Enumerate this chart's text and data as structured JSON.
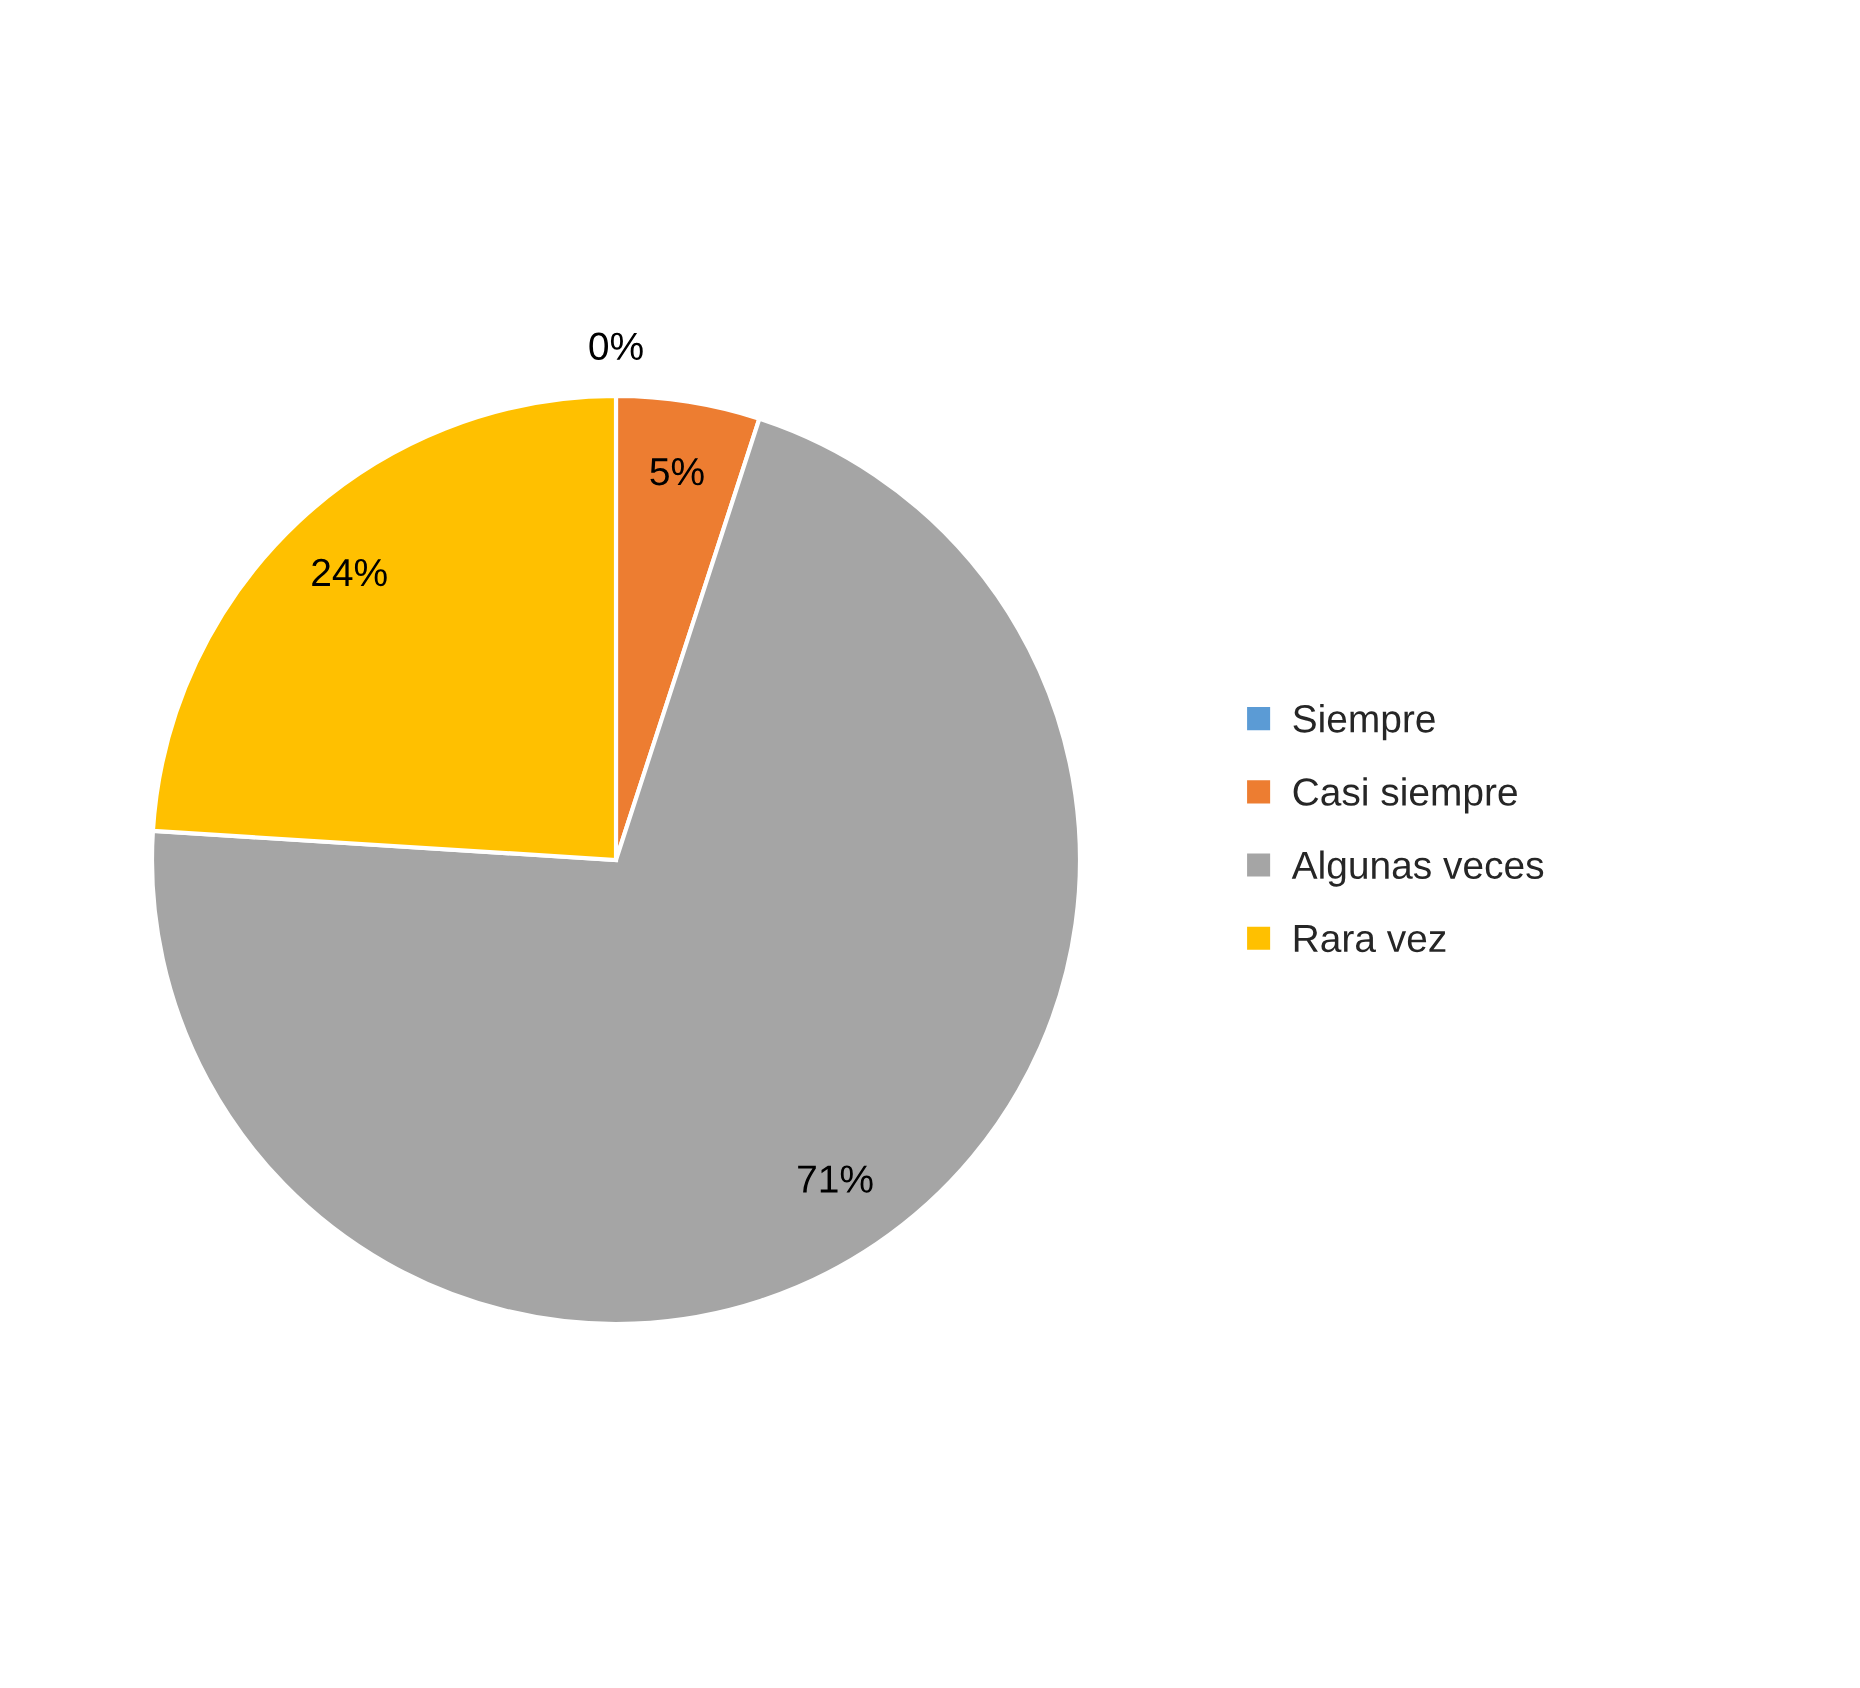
{
  "chart_data": {
    "type": "pie",
    "categories": [
      "Siempre",
      "Casi siempre",
      "Algunas veces",
      "Rara vez"
    ],
    "values": [
      0,
      5,
      71,
      24
    ],
    "colors": [
      "#5b9bd5",
      "#ed7d31",
      "#a5a5a5",
      "#ffc000"
    ],
    "value_labels": [
      "0%",
      "5%",
      "71%",
      "24%"
    ],
    "legend": "right"
  }
}
